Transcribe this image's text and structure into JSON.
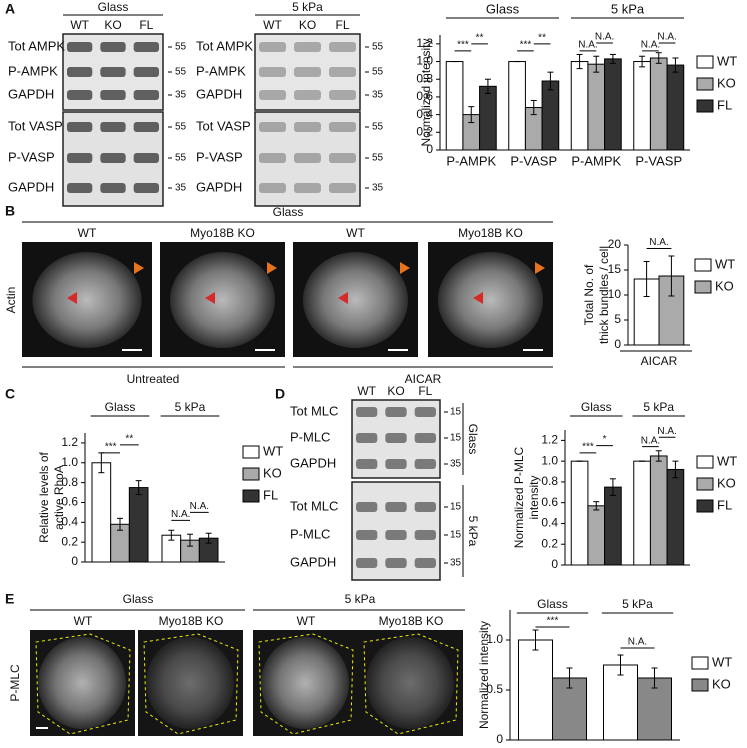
{
  "panel_letters": [
    "A",
    "B",
    "C",
    "D",
    "E"
  ],
  "blots": [
    {
      "title": "Glass",
      "lanes": [
        "WT",
        "KO",
        "FL"
      ],
      "rows": [
        "Tot AMPK",
        "P-AMPK",
        "GAPDH",
        "Tot VASP",
        "P-VASP",
        "GAPDH"
      ],
      "markers": [
        "55",
        "55",
        "35",
        "55",
        "55",
        "35"
      ]
    },
    {
      "title": "5 kPa",
      "lanes": [
        "WT",
        "KO",
        "FL"
      ],
      "rows": [
        "Tot AMPK",
        "P-AMPK",
        "GAPDH",
        "Tot VASP",
        "P-VASP",
        "GAPDH"
      ],
      "markers": [
        "55",
        "55",
        "35",
        "55",
        "55",
        "35"
      ]
    }
  ],
  "micrographs_b": {
    "title": "Glass",
    "stain": "Actin",
    "columns": [
      "WT",
      "Myo18B KO",
      "WT",
      "Myo18B KO"
    ],
    "treatments": [
      "Untreated",
      "AICAR"
    ]
  },
  "blot_d": {
    "lanes": [
      "WT",
      "KO",
      "FL"
    ],
    "groups": [
      {
        "label": "Glass",
        "rows": [
          "Tot MLC",
          "P-MLC",
          "GAPDH"
        ],
        "markers": [
          "15",
          "15",
          "35"
        ]
      },
      {
        "label": "5 kPa",
        "rows": [
          "Tot MLC",
          "P-MLC",
          "GAPDH"
        ],
        "markers": [
          "15",
          "15",
          "35"
        ]
      }
    ]
  },
  "micrographs_e": {
    "groups": [
      "Glass",
      "5 kPa"
    ],
    "columns": [
      "WT",
      "Myo18B KO",
      "WT",
      "Myo18B KO"
    ],
    "stain": "P-MLC"
  },
  "chart_data": [
    {
      "type": "bar",
      "ylabel": [
        "Normalized intensity"
      ],
      "category_groups": [
        "Glass",
        "5 kPa"
      ],
      "categories": [
        "P-AMPK",
        "P-VASP",
        "P-AMPK",
        "P-VASP"
      ],
      "series": [
        {
          "name": "WT",
          "color": "#ffffff",
          "values": [
            1,
            1,
            1,
            1
          ],
          "errors": [
            0,
            0,
            0.08,
            0.06
          ]
        },
        {
          "name": "KO",
          "color": "#aaaaaa",
          "values": [
            0.4,
            0.48,
            0.97,
            1.04
          ],
          "errors": [
            0.09,
            0.08,
            0.09,
            0.06
          ]
        },
        {
          "name": "FL",
          "color": "#333333",
          "values": [
            0.72,
            0.78,
            1.03,
            0.96
          ],
          "errors": [
            0.08,
            0.1,
            0.05,
            0.08
          ]
        }
      ],
      "ylim": [
        0,
        1.3
      ],
      "yticks": [
        0,
        0.2,
        0.4,
        0.6,
        0.8,
        {
          "value": 1,
          "label": "1.0"
        },
        1.2
      ],
      "annotations": [
        "***",
        "**",
        "***",
        "**",
        "N.A.",
        "N.A.",
        "N.A.",
        "N.A."
      ],
      "legend": "right"
    },
    {
      "type": "bar",
      "ylabel": [
        "Total No. of",
        "thick bundles / cell"
      ],
      "categories": [
        "AICAR"
      ],
      "series": [
        {
          "name": "WT",
          "color": "#ffffff",
          "values": [
            13.2
          ],
          "errors": [
            3.5
          ]
        },
        {
          "name": "KO",
          "color": "#aaaaaa",
          "values": [
            13.8
          ],
          "errors": [
            4
          ]
        }
      ],
      "ylim": [
        0,
        20
      ],
      "yticks": [
        0,
        5,
        10,
        15,
        20
      ],
      "annotations": [
        "N.A."
      ],
      "legend": "right"
    },
    {
      "type": "bar",
      "ylabel": [
        "Relative levels of",
        "active RhoA"
      ],
      "categories": [
        "Glass",
        "5 kPa"
      ],
      "series": [
        {
          "name": "WT",
          "color": "#ffffff",
          "values": [
            1.0,
            0.27
          ],
          "errors": [
            0.1,
            0.05
          ]
        },
        {
          "name": "KO",
          "color": "#aaaaaa",
          "values": [
            0.38,
            0.22
          ],
          "errors": [
            0.06,
            0.06
          ]
        },
        {
          "name": "FL",
          "color": "#333333",
          "values": [
            0.75,
            0.24
          ],
          "errors": [
            0.07,
            0.05
          ]
        }
      ],
      "ylim": [
        0,
        1.3
      ],
      "yticks": [
        0,
        0.2,
        0.4,
        0.6,
        0.8,
        {
          "value": 1,
          "label": "1.0"
        },
        1.2
      ],
      "annotations": [
        "***",
        "**",
        "N.A.",
        "N.A."
      ],
      "legend": "right"
    },
    {
      "type": "bar",
      "ylabel": [
        "Normalized P-MLC",
        "intensity"
      ],
      "categories": [
        "Glass",
        "5 kPa"
      ],
      "series": [
        {
          "name": "WT",
          "color": "#ffffff",
          "values": [
            1,
            1
          ],
          "errors": [
            0,
            0
          ]
        },
        {
          "name": "KO",
          "color": "#aaaaaa",
          "values": [
            0.57,
            1.05
          ],
          "errors": [
            0.04,
            0.05
          ]
        },
        {
          "name": "FL",
          "color": "#333333",
          "values": [
            0.75,
            0.92
          ],
          "errors": [
            0.08,
            0.08
          ]
        }
      ],
      "ylim": [
        0,
        1.3
      ],
      "yticks": [
        0,
        0.2,
        0.4,
        0.6,
        0.8,
        {
          "value": 1,
          "label": "1.0"
        },
        1.2
      ],
      "annotations": [
        "***",
        "*",
        "N.A.",
        "N.A."
      ],
      "legend": "right"
    },
    {
      "type": "bar",
      "ylabel": [
        "Normalized intensity"
      ],
      "categories": [
        "Glass",
        "5 kPa"
      ],
      "series": [
        {
          "name": "WT",
          "color": "#ffffff",
          "values": [
            1.0,
            0.75
          ],
          "errors": [
            0.1,
            0.1
          ]
        },
        {
          "name": "KO",
          "color": "#888888",
          "values": [
            0.62,
            0.62
          ],
          "errors": [
            0.1,
            0.1
          ]
        }
      ],
      "ylim": [
        0,
        1.3
      ],
      "yticks": [
        0,
        0.5,
        {
          "value": 1,
          "label": "1.0"
        }
      ],
      "annotations": [
        "***",
        "N.A."
      ],
      "legend": "right"
    }
  ]
}
